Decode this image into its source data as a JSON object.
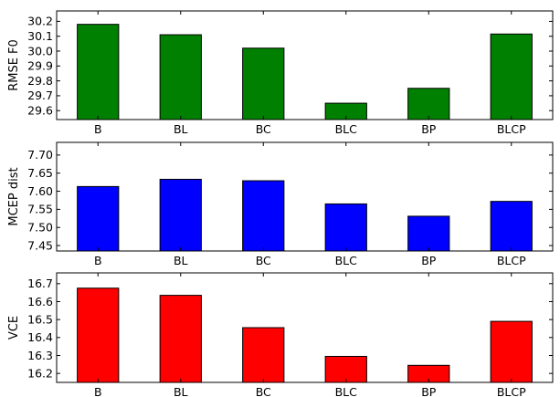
{
  "chart_data": [
    {
      "type": "bar",
      "ylabel": "RMSE F0",
      "categories": [
        "B",
        "BL",
        "BC",
        "BLC",
        "BP",
        "BLCP"
      ],
      "values": [
        30.18,
        30.11,
        30.02,
        29.65,
        29.75,
        30.115
      ],
      "ylim": [
        29.54,
        30.27
      ],
      "yticks": [
        29.6,
        29.7,
        29.8,
        29.9,
        30.0,
        30.1,
        30.2
      ],
      "ytick_labels": [
        "29.6",
        "29.7",
        "29.8",
        "29.9",
        "30.0",
        "30.1",
        "30.2"
      ],
      "color": "#008000",
      "grid": false
    },
    {
      "type": "bar",
      "ylabel": "MCEP dist",
      "categories": [
        "B",
        "BL",
        "BC",
        "BLC",
        "BP",
        "BLCP"
      ],
      "values": [
        7.613,
        7.633,
        7.629,
        7.565,
        7.531,
        7.572
      ],
      "ylim": [
        7.435,
        7.735
      ],
      "yticks": [
        7.45,
        7.5,
        7.55,
        7.6,
        7.65,
        7.7
      ],
      "ytick_labels": [
        "7.45",
        "7.50",
        "7.55",
        "7.60",
        "7.65",
        "7.70"
      ],
      "color": "#0000ff",
      "grid": false
    },
    {
      "type": "bar",
      "ylabel": "VCE",
      "categories": [
        "B",
        "BL",
        "BC",
        "BLC",
        "BP",
        "BLCP"
      ],
      "values": [
        16.675,
        16.635,
        16.455,
        16.295,
        16.245,
        16.49
      ],
      "ylim": [
        16.15,
        16.76
      ],
      "yticks": [
        16.2,
        16.3,
        16.4,
        16.5,
        16.6,
        16.7
      ],
      "ytick_labels": [
        "16.2",
        "16.3",
        "16.4",
        "16.5",
        "16.6",
        "16.7"
      ],
      "color": "#ff0000",
      "grid": false
    }
  ]
}
